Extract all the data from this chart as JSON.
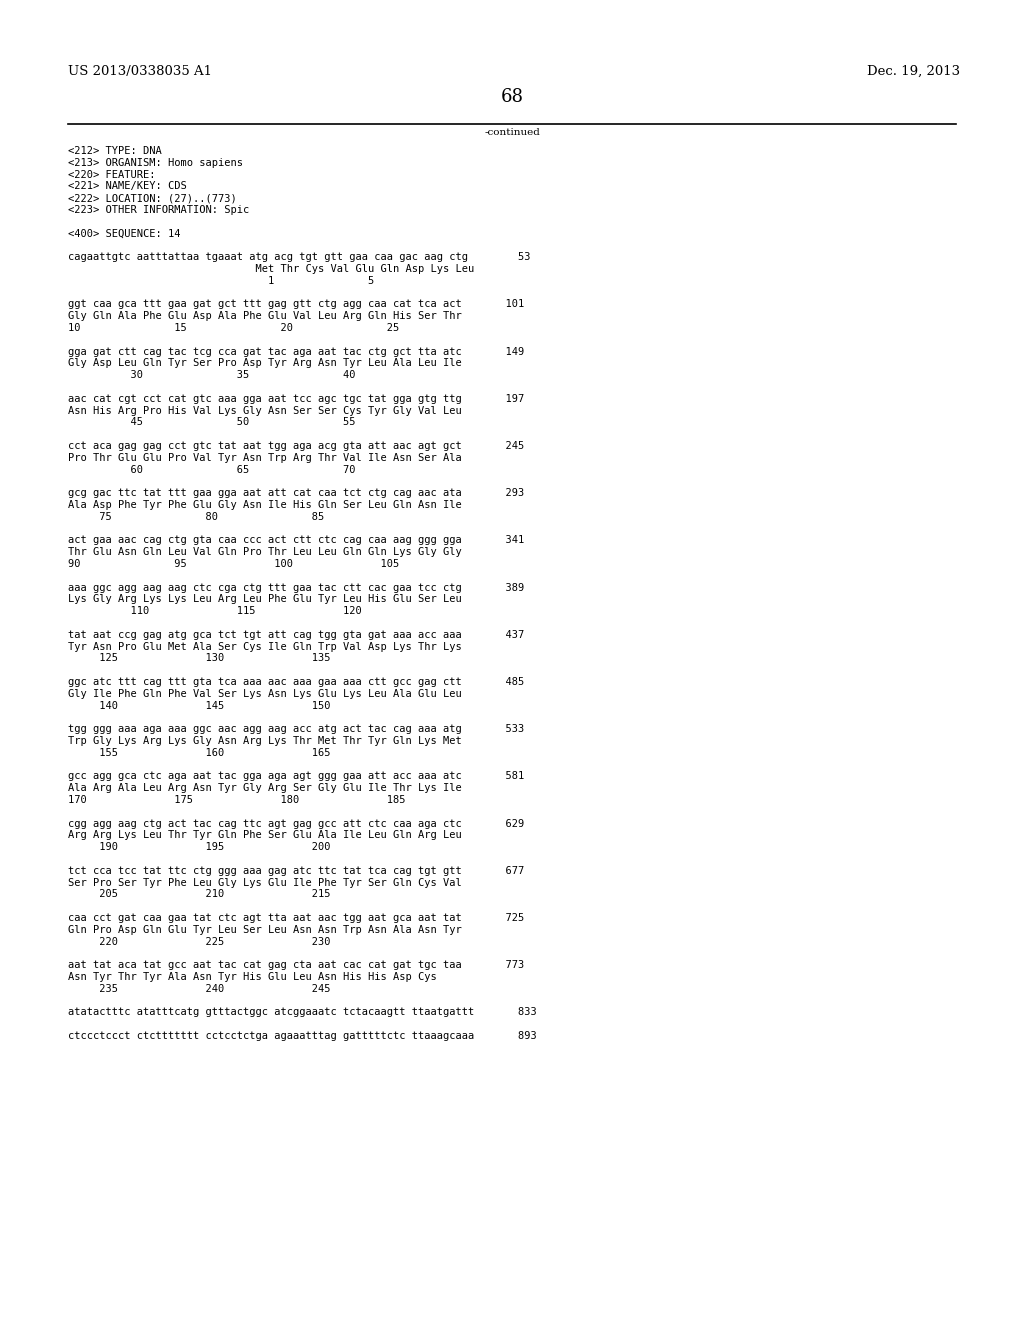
{
  "patent_number": "US 2013/0338035 A1",
  "date": "Dec. 19, 2013",
  "page_number": "68",
  "continued_label": "-continued",
  "background_color": "#ffffff",
  "text_color": "#000000",
  "font_size": 7.5,
  "header_font_size": 9.5,
  "page_num_font_size": 13,
  "mono_font": "monospace",
  "lines": [
    "<212> TYPE: DNA",
    "<213> ORGANISM: Homo sapiens",
    "<220> FEATURE:",
    "<221> NAME/KEY: CDS",
    "<222> LOCATION: (27)..(773)",
    "<223> OTHER INFORMATION: Spic",
    "",
    "<400> SEQUENCE: 14",
    "",
    "cagaattgtc aatttattaa tgaaat atg acg tgt gtt gaa caa gac aag ctg        53",
    "                              Met Thr Cys Val Glu Gln Asp Lys Leu",
    "                                1               5",
    "",
    "ggt caa gca ttt gaa gat gct ttt gag gtt ctg agg caa cat tca act       101",
    "Gly Gln Ala Phe Glu Asp Ala Phe Glu Val Leu Arg Gln His Ser Thr",
    "10               15               20               25",
    "",
    "gga gat ctt cag tac tcg cca gat tac aga aat tac ctg gct tta atc       149",
    "Gly Asp Leu Gln Tyr Ser Pro Asp Tyr Arg Asn Tyr Leu Ala Leu Ile",
    "          30               35               40",
    "",
    "aac cat cgt cct cat gtc aaa gga aat tcc agc tgc tat gga gtg ttg       197",
    "Asn His Arg Pro His Val Lys Gly Asn Ser Ser Cys Tyr Gly Val Leu",
    "          45               50               55",
    "",
    "cct aca gag gag cct gtc tat aat tgg aga acg gta att aac agt gct       245",
    "Pro Thr Glu Glu Pro Val Tyr Asn Trp Arg Thr Val Ile Asn Ser Ala",
    "          60               65               70",
    "",
    "gcg gac ttc tat ttt gaa gga aat att cat caa tct ctg cag aac ata       293",
    "Ala Asp Phe Tyr Phe Glu Gly Asn Ile His Gln Ser Leu Gln Asn Ile",
    "     75               80               85",
    "",
    "act gaa aac cag ctg gta caa ccc act ctt ctc cag caa aag ggg gga       341",
    "Thr Glu Asn Gln Leu Val Gln Pro Thr Leu Leu Gln Gln Lys Gly Gly",
    "90               95              100              105",
    "",
    "aaa ggc agg aag aag ctc cga ctg ttt gaa tac ctt cac gaa tcc ctg       389",
    "Lys Gly Arg Lys Lys Leu Arg Leu Phe Glu Tyr Leu His Glu Ser Leu",
    "          110              115              120",
    "",
    "tat aat ccg gag atg gca tct tgt att cag tgg gta gat aaa acc aaa       437",
    "Tyr Asn Pro Glu Met Ala Ser Cys Ile Gln Trp Val Asp Lys Thr Lys",
    "     125              130              135",
    "",
    "ggc atc ttt cag ttt gta tca aaa aac aaa gaa aaa ctt gcc gag ctt       485",
    "Gly Ile Phe Gln Phe Val Ser Lys Asn Lys Glu Lys Leu Ala Glu Leu",
    "     140              145              150",
    "",
    "tgg ggg aaa aga aaa ggc aac agg aag acc atg act tac cag aaa atg       533",
    "Trp Gly Lys Arg Lys Gly Asn Arg Lys Thr Met Thr Tyr Gln Lys Met",
    "     155              160              165",
    "",
    "gcc agg gca ctc aga aat tac gga aga agt ggg gaa att acc aaa atc       581",
    "Ala Arg Ala Leu Arg Asn Tyr Gly Arg Ser Gly Glu Ile Thr Lys Ile",
    "170              175              180              185",
    "",
    "cgg agg aag ctg act tac cag ttc agt gag gcc att ctc caa aga ctc       629",
    "Arg Arg Lys Leu Thr Tyr Gln Phe Ser Glu Ala Ile Leu Gln Arg Leu",
    "     190              195              200",
    "",
    "tct cca tcc tat ttc ctg ggg aaa gag atc ttc tat tca cag tgt gtt       677",
    "Ser Pro Ser Tyr Phe Leu Gly Lys Glu Ile Phe Tyr Ser Gln Cys Val",
    "     205              210              215",
    "",
    "caa cct gat caa gaa tat ctc agt tta aat aac tgg aat gca aat tat       725",
    "Gln Pro Asp Gln Glu Tyr Leu Ser Leu Asn Asn Trp Asn Ala Asn Tyr",
    "     220              225              230",
    "",
    "aat tat aca tat gcc aat tac cat gag cta aat cac cat gat tgc taa       773",
    "Asn Tyr Thr Tyr Ala Asn Tyr His Glu Leu Asn His His Asp Cys",
    "     235              240              245",
    "",
    "atatactttc atatttcatg gtttactggc atcggaaatc tctacaagtt ttaatgattt       833",
    "",
    "ctccctccct ctcttttttt cctcctctga agaaatttag gatttttctc ttaaagcaaa       893"
  ]
}
